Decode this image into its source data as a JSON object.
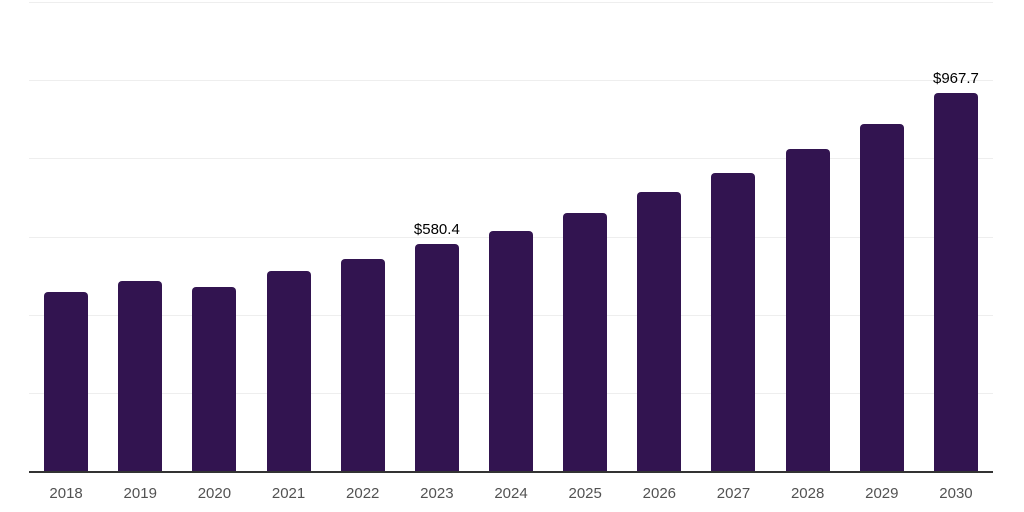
{
  "chart_data": {
    "type": "bar",
    "title": "",
    "xlabel": "",
    "ylabel": "",
    "categories": [
      "2018",
      "2019",
      "2020",
      "2021",
      "2022",
      "2023",
      "2024",
      "2025",
      "2026",
      "2027",
      "2028",
      "2029",
      "2030"
    ],
    "values": [
      459,
      486,
      470,
      513,
      542,
      580.4,
      615,
      660,
      715,
      762,
      823,
      889,
      967.7
    ],
    "data_labels": {
      "2023": "$580.4",
      "2030": "$967.7"
    },
    "ylim": [
      0,
      1200
    ],
    "grid": {
      "enabled": true,
      "y_interval": 200
    },
    "legend_position": "none",
    "colors": {
      "bar": "#321450",
      "gridline": "#eeeeee",
      "axis_line": "#333333",
      "tick_label": "#525252",
      "data_label": "#000000",
      "background": "#ffffff"
    }
  }
}
